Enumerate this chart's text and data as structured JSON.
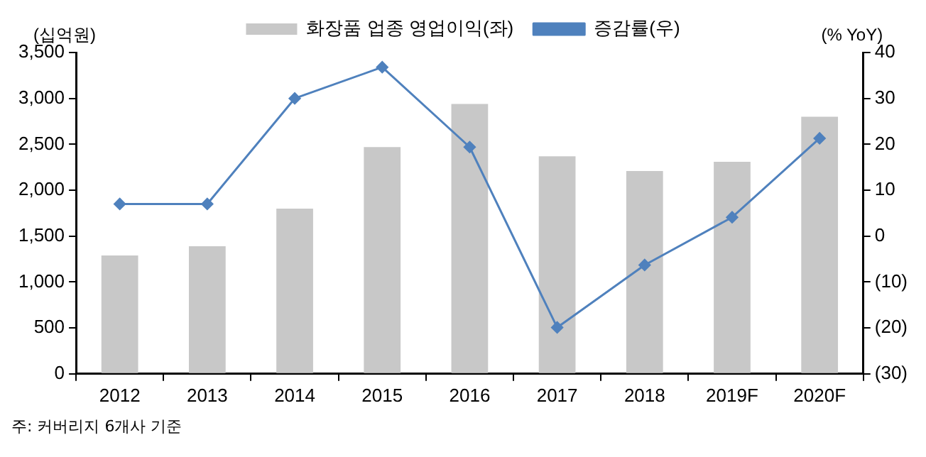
{
  "chart_data": {
    "type": "bar",
    "ylabel": "(십억원)",
    "y2label": "(% YoY)",
    "categories": [
      "2012",
      "2013",
      "2014",
      "2015",
      "2016",
      "2017",
      "2018",
      "2019F",
      "2020F"
    ],
    "series": [
      {
        "name": "화장품 업종 영업이익(좌)",
        "color": "#c8c8c8",
        "values": [
          1290,
          1390,
          1800,
          2470,
          2940,
          2370,
          2210,
          2310,
          2800
        ]
      },
      {
        "name": "증감률(우)",
        "type": "line",
        "axis": "y2",
        "color": "#4f81bd",
        "values": [
          7.0,
          7.0,
          30.0,
          36.8,
          19.4,
          -19.9,
          -6.3,
          4.1,
          21.3
        ]
      }
    ],
    "ylim": [
      0,
      3500
    ],
    "yticks": [
      {
        "value": 0,
        "label": "0"
      },
      {
        "value": 500,
        "label": "500"
      },
      {
        "value": 1000,
        "label": "1,000"
      },
      {
        "value": 1500,
        "label": "1,500"
      },
      {
        "value": 2000,
        "label": "2,000"
      },
      {
        "value": 2500,
        "label": "2,500"
      },
      {
        "value": 3000,
        "label": "3,000"
      },
      {
        "value": 3500,
        "label": "3,500"
      }
    ],
    "y2lim": [
      -30,
      40
    ],
    "y2ticks": [
      {
        "value": -30,
        "label": "(30)"
      },
      {
        "value": -20,
        "label": "(20)"
      },
      {
        "value": -10,
        "label": "(10)"
      },
      0,
      10,
      20,
      30,
      40
    ],
    "grid": false,
    "legend": "top",
    "marker": "diamond",
    "line_style": "solid",
    "annotations": [
      "주: 커버리지 6개사 기준"
    ]
  }
}
